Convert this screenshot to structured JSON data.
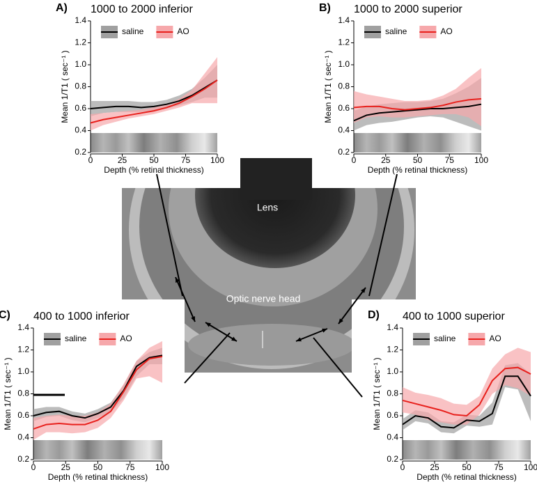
{
  "chart_data": [
    {
      "type": "line",
      "panel": "A)",
      "title": "1000 to 2000 inferior",
      "x_label": "Depth (% retinal thickness)",
      "y_label": "Mean 1/T1 ( sec⁻¹ )",
      "x": [
        0,
        10,
        20,
        30,
        40,
        50,
        60,
        70,
        80,
        90,
        100
      ],
      "series": [
        {
          "name": "saline",
          "color": "#000000",
          "band_color": "#a0a0a0",
          "values": [
            0.6,
            0.61,
            0.62,
            0.62,
            0.61,
            0.62,
            0.64,
            0.67,
            0.72,
            0.79,
            0.86
          ],
          "lower": [
            0.53,
            0.56,
            0.57,
            0.57,
            0.57,
            0.58,
            0.6,
            0.63,
            0.66,
            0.7,
            0.7
          ],
          "upper": [
            0.67,
            0.67,
            0.67,
            0.67,
            0.66,
            0.66,
            0.68,
            0.72,
            0.78,
            0.88,
            1.0
          ]
        },
        {
          "name": "AO",
          "color": "#e8201c",
          "band_color": "#f6a8ab",
          "values": [
            0.47,
            0.5,
            0.52,
            0.54,
            0.56,
            0.58,
            0.61,
            0.65,
            0.71,
            0.78,
            0.86
          ],
          "lower": [
            0.4,
            0.45,
            0.48,
            0.51,
            0.53,
            0.55,
            0.58,
            0.61,
            0.65,
            0.65,
            0.65
          ],
          "upper": [
            0.55,
            0.56,
            0.57,
            0.58,
            0.59,
            0.61,
            0.64,
            0.69,
            0.77,
            0.92,
            1.07
          ]
        }
      ],
      "xlim": [
        0,
        100
      ],
      "xticks": [
        0,
        25,
        50,
        75,
        100
      ],
      "ylim": [
        0.2,
        1.4
      ],
      "yticks": [
        0.2,
        0.4,
        0.6,
        0.8,
        {
          "value": 1,
          "label": "1.0"
        },
        1.2,
        1.4
      ],
      "legend": "upper left"
    },
    {
      "type": "line",
      "panel": "B)",
      "title": "1000 to 2000 superior",
      "x_label": "Depth (% retinal thickness)",
      "y_label": "Mean 1/T1 ( sec⁻¹ )",
      "x": [
        0,
        10,
        20,
        30,
        40,
        50,
        60,
        70,
        80,
        90,
        100
      ],
      "series": [
        {
          "name": "saline",
          "color": "#000000",
          "band_color": "#a0a0a0",
          "values": [
            0.49,
            0.54,
            0.56,
            0.57,
            0.58,
            0.59,
            0.6,
            0.6,
            0.61,
            0.62,
            0.64
          ],
          "lower": [
            0.4,
            0.45,
            0.47,
            0.48,
            0.5,
            0.52,
            0.53,
            0.52,
            0.48,
            0.44,
            0.4
          ],
          "upper": [
            0.58,
            0.62,
            0.64,
            0.65,
            0.66,
            0.66,
            0.67,
            0.69,
            0.74,
            0.8,
            0.88
          ]
        },
        {
          "name": "AO",
          "color": "#e8201c",
          "band_color": "#f6a8ab",
          "values": [
            0.61,
            0.62,
            0.62,
            0.6,
            0.59,
            0.6,
            0.61,
            0.63,
            0.66,
            0.68,
            0.69
          ],
          "lower": [
            0.47,
            0.52,
            0.53,
            0.52,
            0.52,
            0.53,
            0.54,
            0.55,
            0.55,
            0.52,
            0.44
          ],
          "upper": [
            0.76,
            0.73,
            0.71,
            0.69,
            0.67,
            0.67,
            0.68,
            0.72,
            0.78,
            0.88,
            0.97
          ]
        }
      ],
      "xlim": [
        0,
        100
      ],
      "xticks": [
        0,
        25,
        50,
        75,
        100
      ],
      "ylim": [
        0.2,
        1.4
      ],
      "yticks": [
        0.2,
        0.4,
        0.6,
        0.8,
        {
          "value": 1,
          "label": "1.0"
        },
        1.2,
        1.4
      ],
      "legend": "upper left"
    },
    {
      "type": "line",
      "panel": "C)",
      "title": "400 to 1000 inferior",
      "x_label": "Depth (% retinal thickness)",
      "y_label": "Mean 1/T1 ( sec⁻¹ )",
      "x": [
        0,
        10,
        20,
        30,
        40,
        50,
        60,
        70,
        80,
        90,
        100
      ],
      "series": [
        {
          "name": "saline",
          "color": "#000000",
          "band_color": "#a0a0a0",
          "values": [
            0.6,
            0.63,
            0.64,
            0.6,
            0.58,
            0.62,
            0.68,
            0.83,
            1.05,
            1.13,
            1.15
          ],
          "lower": [
            0.55,
            0.59,
            0.6,
            0.56,
            0.54,
            0.58,
            0.63,
            0.76,
            0.96,
            1.07,
            1.07
          ],
          "upper": [
            0.66,
            0.68,
            0.68,
            0.64,
            0.62,
            0.66,
            0.72,
            0.88,
            1.1,
            1.18,
            1.22
          ]
        },
        {
          "name": "AO",
          "color": "#e8201c",
          "band_color": "#f6a8ab",
          "values": [
            0.48,
            0.52,
            0.53,
            0.52,
            0.52,
            0.56,
            0.64,
            0.82,
            1.02,
            1.12,
            1.14
          ],
          "lower": [
            0.38,
            0.45,
            0.45,
            0.44,
            0.45,
            0.49,
            0.58,
            0.74,
            0.94,
            0.96,
            0.9
          ],
          "upper": [
            0.58,
            0.6,
            0.61,
            0.6,
            0.6,
            0.63,
            0.71,
            0.89,
            1.1,
            1.22,
            1.28
          ]
        }
      ],
      "xlim": [
        0,
        100
      ],
      "xticks": [
        0,
        25,
        50,
        75,
        100
      ],
      "ylim": [
        0.2,
        1.4
      ],
      "yticks": [
        0.2,
        0.4,
        0.6,
        0.8,
        {
          "value": 1,
          "label": "1.0"
        },
        1.2,
        1.4
      ],
      "legend": "upper left"
    },
    {
      "type": "line",
      "panel": "D)",
      "title": "400 to 1000 superior",
      "x_label": "Depth (% retinal thickness)",
      "y_label": "Mean 1/T1 ( sec⁻¹ )",
      "x": [
        0,
        10,
        20,
        30,
        40,
        50,
        60,
        70,
        80,
        90,
        100
      ],
      "series": [
        {
          "name": "saline",
          "color": "#000000",
          "band_color": "#a0a0a0",
          "values": [
            0.52,
            0.6,
            0.58,
            0.5,
            0.49,
            0.56,
            0.55,
            0.62,
            0.96,
            0.96,
            0.78
          ],
          "lower": [
            0.47,
            0.55,
            0.53,
            0.45,
            0.44,
            0.51,
            0.5,
            0.52,
            0.86,
            0.84,
            0.55
          ],
          "upper": [
            0.57,
            0.65,
            0.63,
            0.55,
            0.54,
            0.61,
            0.6,
            0.72,
            1.06,
            1.08,
            0.98
          ]
        },
        {
          "name": "AO",
          "color": "#e8201c",
          "band_color": "#f6a8ab",
          "values": [
            0.74,
            0.71,
            0.68,
            0.65,
            0.61,
            0.6,
            0.7,
            0.92,
            1.03,
            1.04,
            0.98
          ],
          "lower": [
            0.63,
            0.61,
            0.56,
            0.54,
            0.52,
            0.52,
            0.61,
            0.8,
            0.88,
            0.85,
            0.78
          ],
          "upper": [
            0.86,
            0.81,
            0.79,
            0.76,
            0.71,
            0.7,
            0.78,
            1.03,
            1.16,
            1.22,
            1.18
          ]
        }
      ],
      "xlim": [
        0,
        100
      ],
      "xticks": [
        0,
        25,
        50,
        75,
        100
      ],
      "ylim": [
        0.2,
        1.4
      ],
      "yticks": [
        0.2,
        0.4,
        0.6,
        0.8,
        {
          "value": 1,
          "label": "1.0"
        },
        1.2,
        1.4
      ],
      "legend": "upper left"
    }
  ],
  "image": {
    "labels": [
      "Lens",
      "Optic nerve head"
    ]
  }
}
